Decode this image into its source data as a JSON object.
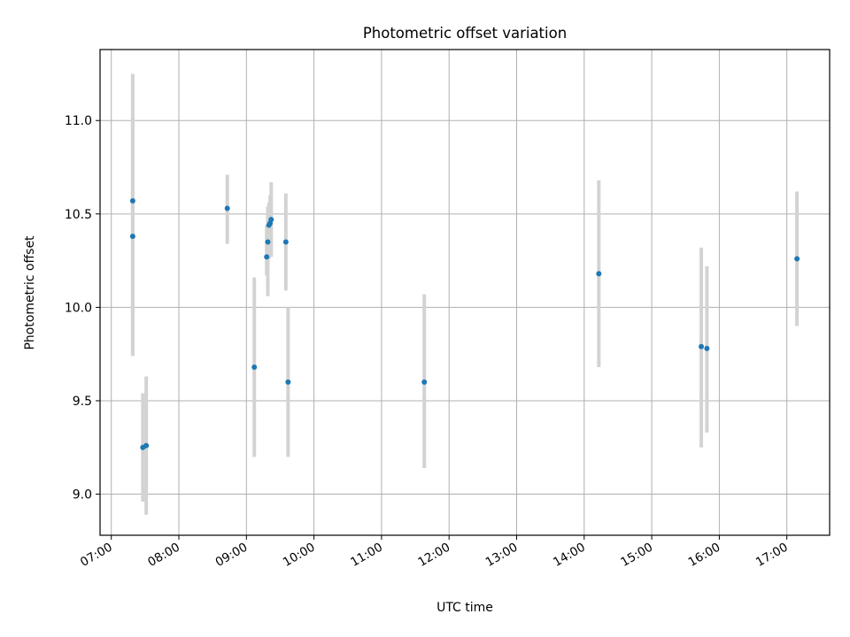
{
  "chart_data": {
    "type": "scatter",
    "title": "Photometric offset variation",
    "xlabel": "UTC time",
    "ylabel": "Photometric offset",
    "grid": true,
    "x_unit": "UTC clock time (HH:MM)",
    "xlim": [
      "06:50",
      "17:38"
    ],
    "ylim": [
      8.78,
      11.38
    ],
    "x_ticks": [
      "07:00",
      "08:00",
      "09:00",
      "10:00",
      "11:00",
      "12:00",
      "13:00",
      "14:00",
      "15:00",
      "16:00",
      "17:00"
    ],
    "y_ticks": [
      "9.0",
      "9.5",
      "10.0",
      "10.5",
      "11.0"
    ],
    "y_tick_values": [
      9.0,
      9.5,
      10.0,
      10.5,
      11.0
    ],
    "colors": {
      "marker": "#1f77b4",
      "errorbar": "#d3d3d3",
      "grid": "#b0b0b0"
    },
    "series": [
      {
        "points": [
          {
            "x": "07:19",
            "y": 10.57,
            "ylow": 9.74,
            "yhigh": 11.25
          },
          {
            "x": "07:19",
            "y": 10.38,
            "ylow": 9.74,
            "yhigh": 11.02
          },
          {
            "x": "07:28",
            "y": 9.25,
            "ylow": 8.96,
            "yhigh": 9.54
          },
          {
            "x": "07:31",
            "y": 9.26,
            "ylow": 8.89,
            "yhigh": 9.63
          },
          {
            "x": "08:43",
            "y": 10.53,
            "ylow": 10.34,
            "yhigh": 10.71
          },
          {
            "x": "09:07",
            "y": 9.68,
            "ylow": 9.2,
            "yhigh": 10.16
          },
          {
            "x": "09:18",
            "y": 10.27,
            "ylow": 10.17,
            "yhigh": 10.44
          },
          {
            "x": "09:19",
            "y": 10.35,
            "ylow": 10.06,
            "yhigh": 10.54
          },
          {
            "x": "09:20",
            "y": 10.44,
            "ylow": 10.26,
            "yhigh": 10.56
          },
          {
            "x": "09:21",
            "y": 10.45,
            "ylow": 10.27,
            "yhigh": 10.6
          },
          {
            "x": "09:22",
            "y": 10.47,
            "ylow": 10.27,
            "yhigh": 10.67
          },
          {
            "x": "09:35",
            "y": 10.35,
            "ylow": 10.09,
            "yhigh": 10.61
          },
          {
            "x": "09:37",
            "y": 9.6,
            "ylow": 9.2,
            "yhigh": 10.0
          },
          {
            "x": "11:38",
            "y": 9.6,
            "ylow": 9.14,
            "yhigh": 10.07
          },
          {
            "x": "14:13",
            "y": 10.18,
            "ylow": 9.68,
            "yhigh": 10.68
          },
          {
            "x": "15:44",
            "y": 9.79,
            "ylow": 9.25,
            "yhigh": 10.32
          },
          {
            "x": "15:49",
            "y": 9.78,
            "ylow": 9.33,
            "yhigh": 10.22
          },
          {
            "x": "17:09",
            "y": 10.26,
            "ylow": 9.9,
            "yhigh": 10.62
          }
        ]
      }
    ]
  }
}
